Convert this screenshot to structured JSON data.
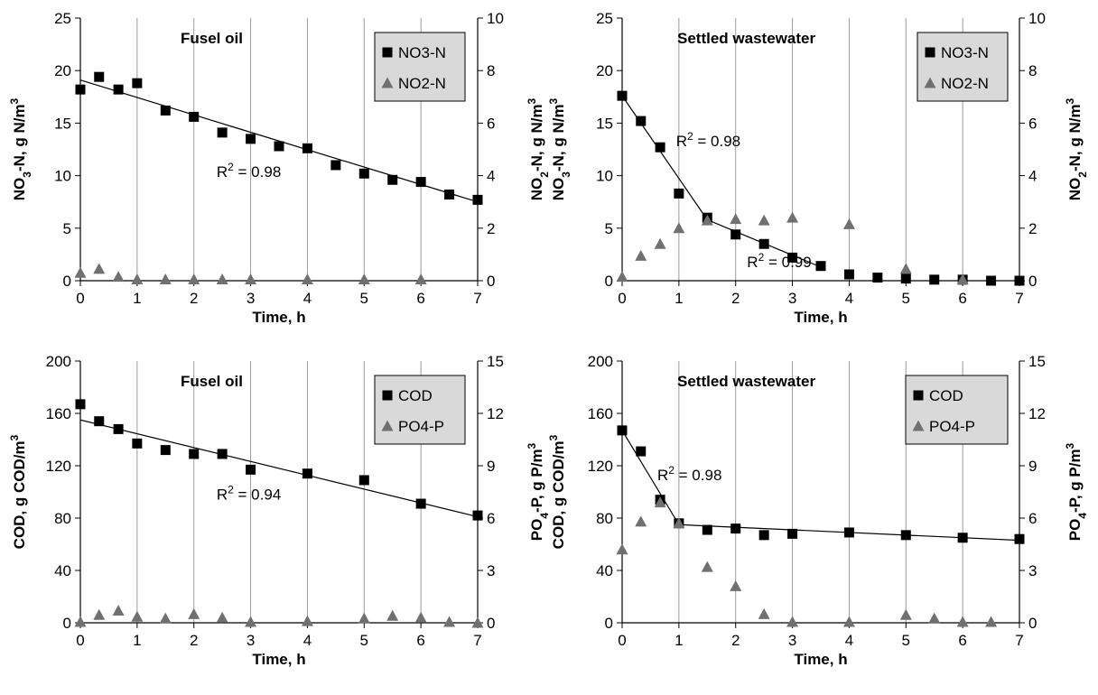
{
  "chart_data": [
    {
      "type": "scatter",
      "title": "Fusel oil",
      "xlabel": "Time, h",
      "ylabel": "NO3-N, g N/m3",
      "ylabel_parts": [
        [
          "NO",
          ""
        ],
        [
          "3",
          "sub"
        ],
        [
          "-N, g N/m",
          ""
        ],
        [
          "3",
          "sup"
        ]
      ],
      "y2label": "",
      "y2label_parts": [],
      "xlim": [
        0,
        7
      ],
      "xticks": [
        0,
        1,
        2,
        3,
        4,
        5,
        6,
        7
      ],
      "ylim": [
        0,
        25
      ],
      "yticks": [
        0,
        5,
        10,
        15,
        20,
        25
      ],
      "y2lim": [
        0,
        10
      ],
      "y2ticks": [
        0,
        2,
        4,
        6,
        8,
        10
      ],
      "grid": "vertical",
      "legend": "top-right",
      "series": [
        {
          "name": "NO3-N",
          "marker": "square",
          "axis": "left",
          "color": "#000000",
          "x": [
            0,
            0.33,
            0.67,
            1,
            1.5,
            2,
            2.5,
            3,
            3.5,
            4,
            4.5,
            5,
            5.5,
            6,
            6.5,
            7
          ],
          "y": [
            18.2,
            19.4,
            18.2,
            18.8,
            16.2,
            15.6,
            14.1,
            13.5,
            12.8,
            12.6,
            11.0,
            10.2,
            9.6,
            9.4,
            8.2,
            7.7
          ]
        },
        {
          "name": "NO2-N",
          "marker": "triangle",
          "axis": "right",
          "color": "#707070",
          "x": [
            0,
            0.33,
            0.67,
            1,
            1.5,
            2,
            2.5,
            3,
            4,
            5,
            6
          ],
          "y": [
            0.3,
            0.45,
            0.15,
            0.05,
            0.05,
            0.05,
            0.05,
            0.05,
            0.05,
            0.05,
            0.05
          ]
        }
      ],
      "trendlines": [
        {
          "axis": "left",
          "points": [
            [
              0,
              19.1
            ],
            [
              7,
              7.5
            ]
          ]
        }
      ],
      "annotations": [
        {
          "label": "R",
          "exp": "2",
          "rest": " = 0.98",
          "x": 2.4,
          "y": 9.9
        }
      ]
    },
    {
      "type": "scatter",
      "title": "Settled wastewater",
      "xlabel": "Time, h",
      "ylabel": "NO2-N, g N/m3 NO3-N, g N/m3",
      "ylabel_parts": [
        [
          "NO",
          ""
        ],
        [
          "2",
          "sub"
        ],
        [
          "-N, g N/m",
          ""
        ],
        [
          "3",
          "sup"
        ],
        [
          "\n",
          "br"
        ],
        [
          "NO",
          ""
        ],
        [
          "3",
          "sub"
        ],
        [
          "-N, g N/m",
          ""
        ],
        [
          "3",
          "sup"
        ]
      ],
      "y2label": "NO2-N, g N/m3",
      "y2label_parts": [
        [
          "NO",
          ""
        ],
        [
          "2",
          "sub"
        ],
        [
          "-N, g N/m",
          ""
        ],
        [
          "3",
          "sup"
        ]
      ],
      "xlim": [
        0,
        7
      ],
      "xticks": [
        0,
        1,
        2,
        3,
        4,
        5,
        6,
        7
      ],
      "ylim": [
        0,
        25
      ],
      "yticks": [
        0,
        5,
        10,
        15,
        20,
        25
      ],
      "y2lim": [
        0,
        10
      ],
      "y2ticks": [
        0,
        2,
        4,
        6,
        8,
        10
      ],
      "grid": "vertical",
      "legend": "top-right",
      "series": [
        {
          "name": "NO3-N",
          "marker": "square",
          "axis": "left",
          "color": "#000000",
          "x": [
            0,
            0.33,
            0.67,
            1,
            1.5,
            2,
            2.5,
            3,
            3.5,
            4,
            4.5,
            5,
            5.5,
            6,
            6.5,
            7
          ],
          "y": [
            17.6,
            15.2,
            12.7,
            8.3,
            6.0,
            4.4,
            3.5,
            2.2,
            1.4,
            0.6,
            0.3,
            0.2,
            0.1,
            0.1,
            0.0,
            0.0
          ]
        },
        {
          "name": "NO2-N",
          "marker": "triangle",
          "axis": "right",
          "color": "#707070",
          "x": [
            0,
            0.33,
            0.67,
            1,
            1.5,
            2,
            2.5,
            3,
            4,
            5,
            6
          ],
          "y": [
            0.15,
            0.95,
            1.4,
            2.0,
            2.3,
            2.35,
            2.3,
            2.4,
            2.15,
            0.45,
            0.05
          ]
        }
      ],
      "trendlines": [
        {
          "axis": "left",
          "points": [
            [
              0,
              17.6
            ],
            [
              1.5,
              5.8
            ]
          ]
        },
        {
          "axis": "left",
          "points": [
            [
              1.5,
              5.8
            ],
            [
              3.5,
              1.3
            ]
          ]
        }
      ],
      "annotations": [
        {
          "label": "R",
          "exp": "2",
          "rest": " = 0.98",
          "x": 0.95,
          "y": 12.8
        },
        {
          "label": "R",
          "exp": "2",
          "rest": " = 0.99",
          "x": 2.2,
          "y": 1.3
        }
      ]
    },
    {
      "type": "scatter",
      "title": "Fusel oil",
      "xlabel": "Time, h",
      "ylabel": "COD, g COD/m3",
      "ylabel_parts": [
        [
          "COD, g COD/m",
          ""
        ],
        [
          "3",
          "sup"
        ]
      ],
      "y2label": "",
      "y2label_parts": [],
      "xlim": [
        0,
        7
      ],
      "xticks": [
        0,
        1,
        2,
        3,
        4,
        5,
        6,
        7
      ],
      "ylim": [
        0,
        200
      ],
      "yticks": [
        0,
        40,
        80,
        120,
        160,
        200
      ],
      "y2lim": [
        0,
        15
      ],
      "y2ticks": [
        0,
        3,
        6,
        9,
        12,
        15
      ],
      "grid": "vertical",
      "legend": "top-right",
      "series": [
        {
          "name": "COD",
          "marker": "square",
          "axis": "left",
          "color": "#000000",
          "x": [
            0,
            0.33,
            0.67,
            1,
            1.5,
            2,
            2.5,
            3,
            4,
            5,
            6,
            7
          ],
          "y": [
            167,
            154,
            148,
            137,
            132,
            129,
            129,
            117,
            114,
            109,
            91,
            82
          ]
        },
        {
          "name": "PO4-P",
          "marker": "triangle",
          "axis": "right",
          "color": "#707070",
          "x": [
            0,
            0.33,
            0.67,
            1,
            1.5,
            2,
            2.5,
            3,
            4,
            5,
            5.5,
            6,
            6.5,
            7
          ],
          "y": [
            0.05,
            0.45,
            0.7,
            0.35,
            0.25,
            0.5,
            0.3,
            0.05,
            0.1,
            0.25,
            0.4,
            0.3,
            0.05,
            0.0
          ]
        }
      ],
      "trendlines": [
        {
          "axis": "left",
          "points": [
            [
              0,
              155
            ],
            [
              7,
              81
            ]
          ]
        }
      ],
      "annotations": [
        {
          "label": "R",
          "exp": "2",
          "rest": " = 0.94",
          "x": 2.4,
          "y": 94
        }
      ]
    },
    {
      "type": "scatter",
      "title": "Settled wastewater",
      "xlabel": "Time, h",
      "ylabel": "PO4-P, g P/m3 COD, g COD/m3",
      "ylabel_parts": [
        [
          "PO",
          ""
        ],
        [
          "4",
          "sub"
        ],
        [
          "-P, g P/m",
          ""
        ],
        [
          "3",
          "sup"
        ],
        [
          "\n",
          "br"
        ],
        [
          "COD, g COD/m",
          ""
        ],
        [
          "3",
          "sup"
        ]
      ],
      "y2label": "PO4-P, g P/m3",
      "y2label_parts": [
        [
          "PO",
          ""
        ],
        [
          "4",
          "sub"
        ],
        [
          "-P, g P/m",
          ""
        ],
        [
          "3",
          "sup"
        ]
      ],
      "xlim": [
        0,
        7
      ],
      "xticks": [
        0,
        1,
        2,
        3,
        4,
        5,
        6,
        7
      ],
      "ylim": [
        0,
        200
      ],
      "yticks": [
        0,
        40,
        80,
        120,
        160,
        200
      ],
      "y2lim": [
        0,
        15
      ],
      "y2ticks": [
        0,
        3,
        6,
        9,
        12,
        15
      ],
      "grid": "vertical",
      "legend": "top-right",
      "series": [
        {
          "name": "COD",
          "marker": "square",
          "axis": "left",
          "color": "#000000",
          "x": [
            0,
            0.33,
            0.67,
            1,
            1.5,
            2,
            2.5,
            3,
            4,
            5,
            6,
            7
          ],
          "y": [
            147,
            131,
            94,
            76,
            71,
            72,
            67,
            68,
            69,
            67,
            65,
            64
          ]
        },
        {
          "name": "PO4-P",
          "marker": "triangle",
          "axis": "right",
          "color": "#707070",
          "x": [
            0,
            0.33,
            0.67,
            1,
            1.5,
            2,
            2.5,
            3,
            4,
            5,
            5.5,
            6,
            6.5
          ],
          "y": [
            4.2,
            5.8,
            6.9,
            5.7,
            3.2,
            2.1,
            0.5,
            0.05,
            0.05,
            0.45,
            0.25,
            0.05,
            0.05
          ]
        }
      ],
      "trendlines": [
        {
          "axis": "left",
          "points": [
            [
              0,
              147
            ],
            [
              1,
              75
            ]
          ]
        },
        {
          "axis": "left",
          "points": [
            [
              1,
              75
            ],
            [
              7,
              63
            ]
          ]
        }
      ],
      "annotations": [
        {
          "label": "R",
          "exp": "2",
          "rest": " = 0.98",
          "x": 0.62,
          "y": 109
        }
      ]
    }
  ]
}
